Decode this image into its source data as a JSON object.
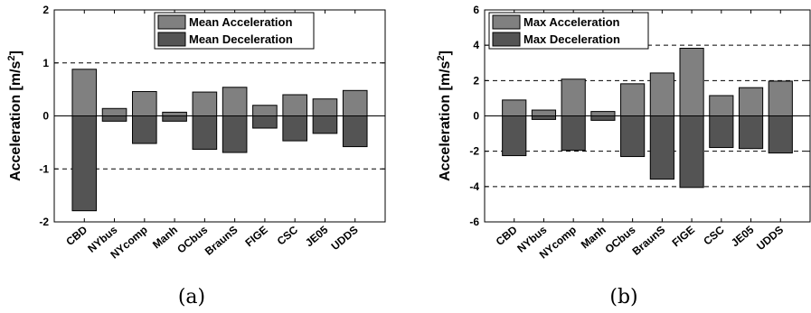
{
  "chart_data": [
    {
      "type": "bar",
      "panel_label": "(a)",
      "ylabel": "Acceleration [m/s",
      "ylabel_sup": "2",
      "ylabel_end": "]",
      "ylim": [
        -2,
        2
      ],
      "yticks": [
        -2,
        -1,
        0,
        1,
        2
      ],
      "grid_lines": [
        -1,
        1
      ],
      "legend_position": "top-center",
      "categories": [
        "CBD",
        "NYbus",
        "NYcomp",
        "Manh",
        "OCbus",
        "BraunS",
        "FIGE",
        "CSC",
        "JE05",
        "UDDS"
      ],
      "series": [
        {
          "name": "Mean Acceleration",
          "color": "#808080",
          "values": [
            0.88,
            0.14,
            0.46,
            0.07,
            0.45,
            0.54,
            0.2,
            0.4,
            0.32,
            0.48
          ]
        },
        {
          "name": "Mean Deceleration",
          "color": "#545454",
          "values": [
            -1.79,
            -0.1,
            -0.52,
            -0.1,
            -0.63,
            -0.69,
            -0.23,
            -0.47,
            -0.33,
            -0.58
          ]
        }
      ]
    },
    {
      "type": "bar",
      "panel_label": "(b)",
      "ylabel": "Acceleration [m/s",
      "ylabel_sup": "2",
      "ylabel_end": "]",
      "ylim": [
        -6,
        6
      ],
      "yticks": [
        -6,
        -4,
        -2,
        0,
        2,
        4,
        6
      ],
      "grid_lines": [
        -4,
        -2,
        2,
        4
      ],
      "legend_position": "top-center",
      "categories": [
        "CBD",
        "NYbus",
        "NYcomp",
        "Manh",
        "OCbus",
        "BraunS",
        "FIGE",
        "CSC",
        "JE05",
        "UDDS"
      ],
      "series": [
        {
          "name": "Max Acceleration",
          "color": "#808080",
          "values": [
            0.9,
            0.33,
            2.08,
            0.25,
            1.82,
            2.43,
            3.83,
            1.15,
            1.6,
            1.97
          ]
        },
        {
          "name": "Max Deceleration",
          "color": "#545454",
          "values": [
            -2.25,
            -0.2,
            -1.95,
            -0.25,
            -2.3,
            -3.58,
            -4.05,
            -1.79,
            -1.85,
            -2.1
          ]
        }
      ]
    }
  ]
}
